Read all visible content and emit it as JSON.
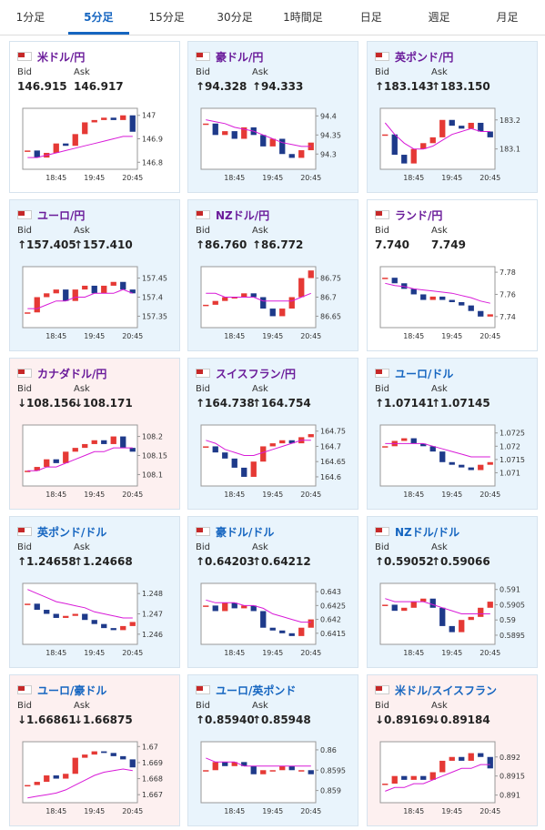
{
  "tabs": {
    "items": [
      "1分足",
      "5分足",
      "15分足",
      "30分足",
      "1時間足",
      "日足",
      "週足",
      "月足"
    ],
    "active_index": 1
  },
  "bid_label": "Bid",
  "ask_label": "Ask",
  "cards": [
    {
      "title": "米ドル/円",
      "bid": "146.915",
      "ask": "146.917",
      "background": "#ffffff",
      "link_color": "#6a1b9a",
      "chart": {
        "type": "candlestick",
        "categories": [
          null,
          null,
          null,
          "18:45",
          null,
          null,
          null,
          "19:45",
          null,
          null,
          null,
          "20:45"
        ],
        "close": [
          146.85,
          146.82,
          146.84,
          146.88,
          146.87,
          146.92,
          146.97,
          146.98,
          146.99,
          146.98,
          147.0,
          146.93
        ],
        "ma": [
          146.82,
          146.82,
          146.83,
          146.84,
          146.85,
          146.86,
          146.87,
          146.88,
          146.89,
          146.9,
          146.91,
          146.91
        ],
        "ylim": [
          146.77,
          147.03
        ],
        "yticks": [
          147,
          146.9,
          146.8
        ]
      }
    },
    {
      "title": "豪ドル/円",
      "bid": "↑94.328",
      "ask": "↑94.333",
      "background": "#e9f4fc",
      "link_color": "#6a1b9a",
      "chart": {
        "type": "candlestick",
        "categories": [
          null,
          null,
          null,
          "18:45",
          null,
          null,
          null,
          "19:45",
          null,
          null,
          null,
          "20:45"
        ],
        "close": [
          94.38,
          94.35,
          94.36,
          94.34,
          94.37,
          94.35,
          94.32,
          94.34,
          94.3,
          94.29,
          94.31,
          94.33
        ],
        "ma": [
          94.39,
          94.385,
          94.38,
          94.37,
          94.365,
          94.36,
          94.35,
          94.34,
          94.33,
          94.325,
          94.32,
          94.32
        ],
        "ylim": [
          94.26,
          94.42
        ],
        "yticks": [
          94.4,
          94.35,
          94.3
        ]
      }
    },
    {
      "title": "英ポンド/円",
      "bid": "↑183.143",
      "ask": "↑183.150",
      "background": "#e9f4fc",
      "link_color": "#6a1b9a",
      "chart": {
        "type": "candlestick",
        "categories": [
          null,
          null,
          null,
          "18:45",
          null,
          null,
          null,
          "19:45",
          null,
          null,
          null,
          "20:45"
        ],
        "close": [
          183.15,
          183.08,
          183.05,
          183.1,
          183.12,
          183.14,
          183.2,
          183.18,
          183.17,
          183.19,
          183.16,
          183.14
        ],
        "ma": [
          183.19,
          183.15,
          183.12,
          183.1,
          183.1,
          183.11,
          183.13,
          183.15,
          183.16,
          183.17,
          183.16,
          183.16
        ],
        "ylim": [
          183.03,
          183.24
        ],
        "yticks": [
          183.2,
          183.1
        ]
      }
    },
    {
      "title": "ユーロ/円",
      "bid": "↑157.405",
      "ask": "↑157.410",
      "background": "#e9f4fc",
      "link_color": "#6a1b9a",
      "chart": {
        "type": "candlestick",
        "categories": [
          null,
          null,
          null,
          "18:45",
          null,
          null,
          null,
          "19:45",
          null,
          null,
          null,
          "20:45"
        ],
        "close": [
          157.36,
          157.4,
          157.41,
          157.42,
          157.39,
          157.42,
          157.43,
          157.41,
          157.43,
          157.44,
          157.42,
          157.41
        ],
        "ma": [
          157.37,
          157.37,
          157.38,
          157.39,
          157.39,
          157.4,
          157.4,
          157.41,
          157.41,
          157.41,
          157.42,
          157.41
        ],
        "ylim": [
          157.32,
          157.48
        ],
        "yticks": [
          157.45,
          157.4,
          157.35
        ]
      }
    },
    {
      "title": "NZドル/円",
      "bid": "↑86.760",
      "ask": "↑86.772",
      "background": "#e9f4fc",
      "link_color": "#6a1b9a",
      "chart": {
        "type": "candlestick",
        "categories": [
          null,
          null,
          null,
          "18:45",
          null,
          null,
          null,
          "19:45",
          null,
          null,
          null,
          "20:45"
        ],
        "close": [
          86.68,
          86.69,
          86.7,
          86.7,
          86.71,
          86.7,
          86.67,
          86.65,
          86.67,
          86.7,
          86.75,
          86.77
        ],
        "ma": [
          86.71,
          86.71,
          86.7,
          86.7,
          86.7,
          86.7,
          86.69,
          86.69,
          86.69,
          86.69,
          86.7,
          86.71
        ],
        "ylim": [
          86.62,
          86.78
        ],
        "yticks": [
          86.75,
          86.7,
          86.65
        ]
      }
    },
    {
      "title": "ランド/円",
      "bid": "7.740",
      "ask": "7.749",
      "background": "#ffffff",
      "link_color": "#6a1b9a",
      "chart": {
        "type": "candlestick",
        "categories": [
          null,
          null,
          null,
          "18:45",
          null,
          null,
          null,
          "19:45",
          null,
          null,
          null,
          "20:45"
        ],
        "close": [
          7.775,
          7.77,
          7.765,
          7.76,
          7.755,
          7.758,
          7.755,
          7.753,
          7.75,
          7.745,
          7.74,
          7.742
        ],
        "ma": [
          7.77,
          7.768,
          7.767,
          7.765,
          7.764,
          7.763,
          7.762,
          7.761,
          7.759,
          7.757,
          7.754,
          7.752
        ],
        "ylim": [
          7.73,
          7.785
        ],
        "yticks": [
          7.78,
          7.76,
          7.74
        ]
      }
    },
    {
      "title": "カナダドル/円",
      "bid": "↓108.156",
      "ask": "↓108.171",
      "background": "#fdf0f0",
      "link_color": "#6a1b9a",
      "chart": {
        "type": "candlestick",
        "categories": [
          null,
          null,
          null,
          "18:45",
          null,
          null,
          null,
          "19:45",
          null,
          null,
          null,
          "20:45"
        ],
        "close": [
          108.11,
          108.12,
          108.14,
          108.13,
          108.16,
          108.17,
          108.18,
          108.19,
          108.18,
          108.2,
          108.17,
          108.16
        ],
        "ma": [
          108.11,
          108.11,
          108.12,
          108.12,
          108.13,
          108.14,
          108.15,
          108.16,
          108.16,
          108.17,
          108.17,
          108.17
        ],
        "ylim": [
          108.07,
          108.23
        ],
        "yticks": [
          108.2,
          108.15,
          108.1
        ]
      }
    },
    {
      "title": "スイスフラン/円",
      "bid": "↑164.738",
      "ask": "↑164.754",
      "background": "#e9f4fc",
      "link_color": "#6a1b9a",
      "chart": {
        "type": "candlestick",
        "categories": [
          null,
          null,
          null,
          "18:45",
          null,
          null,
          null,
          "19:45",
          null,
          null,
          null,
          "20:45"
        ],
        "close": [
          164.7,
          164.68,
          164.66,
          164.63,
          164.6,
          164.65,
          164.7,
          164.71,
          164.72,
          164.71,
          164.73,
          164.74
        ],
        "ma": [
          164.72,
          164.71,
          164.69,
          164.68,
          164.67,
          164.67,
          164.68,
          164.69,
          164.7,
          164.71,
          164.72,
          164.72
        ],
        "ylim": [
          164.57,
          164.77
        ],
        "yticks": [
          164.75,
          164.7,
          164.65,
          164.6
        ]
      }
    },
    {
      "title": "ユーロ/ドル",
      "bid": "↑1.07141",
      "ask": "↑1.07145",
      "background": "#e9f4fc",
      "link_color": "#1565c0",
      "chart": {
        "type": "candlestick",
        "categories": [
          null,
          null,
          null,
          "18:45",
          null,
          null,
          null,
          "19:45",
          null,
          null,
          null,
          "20:45"
        ],
        "close": [
          1.072,
          1.0722,
          1.0723,
          1.0721,
          1.072,
          1.0718,
          1.0714,
          1.0713,
          1.0712,
          1.0711,
          1.0713,
          1.0714
        ],
        "ma": [
          1.0721,
          1.0721,
          1.0721,
          1.0721,
          1.0721,
          1.072,
          1.0719,
          1.0718,
          1.0717,
          1.0716,
          1.0716,
          1.0716
        ],
        "ylim": [
          1.0705,
          1.0728
        ],
        "yticks": [
          1.0725,
          1.072,
          1.0715,
          1.071
        ]
      }
    },
    {
      "title": "英ポンド/ドル",
      "bid": "↑1.24658",
      "ask": "↑1.24668",
      "background": "#e9f4fc",
      "link_color": "#1565c0",
      "chart": {
        "type": "candlestick",
        "categories": [
          null,
          null,
          null,
          "18:45",
          null,
          null,
          null,
          "19:45",
          null,
          null,
          null,
          "20:45"
        ],
        "close": [
          1.2475,
          1.2472,
          1.247,
          1.2468,
          1.2469,
          1.247,
          1.2467,
          1.2465,
          1.2463,
          1.2462,
          1.2464,
          1.2466
        ],
        "ma": [
          1.2482,
          1.248,
          1.2478,
          1.2476,
          1.2475,
          1.2474,
          1.2473,
          1.2471,
          1.247,
          1.2469,
          1.2468,
          1.2468
        ],
        "ylim": [
          1.2455,
          1.2485
        ],
        "yticks": [
          1.248,
          1.247,
          1.246
        ]
      }
    },
    {
      "title": "豪ドル/ドル",
      "bid": "↑0.64203",
      "ask": "↑0.64212",
      "background": "#e9f4fc",
      "link_color": "#1565c0",
      "chart": {
        "type": "candlestick",
        "categories": [
          null,
          null,
          null,
          "18:45",
          null,
          null,
          null,
          "19:45",
          null,
          null,
          null,
          "20:45"
        ],
        "close": [
          0.6425,
          0.6423,
          0.6426,
          0.6424,
          0.6425,
          0.6423,
          0.6417,
          0.6416,
          0.6415,
          0.6414,
          0.6417,
          0.642
        ],
        "ma": [
          0.6427,
          0.6426,
          0.6426,
          0.6426,
          0.6425,
          0.6425,
          0.6424,
          0.6422,
          0.6421,
          0.642,
          0.6419,
          0.6419
        ],
        "ylim": [
          0.6411,
          0.6433
        ],
        "yticks": [
          0.643,
          0.6425,
          0.642,
          0.6415
        ]
      }
    },
    {
      "title": "NZドル/ドル",
      "bid": "↑0.59052",
      "ask": "↑0.59066",
      "background": "#e9f4fc",
      "link_color": "#1565c0",
      "chart": {
        "type": "candlestick",
        "categories": [
          null,
          null,
          null,
          "18:45",
          null,
          null,
          null,
          "19:45",
          null,
          null,
          null,
          "20:45"
        ],
        "close": [
          0.5905,
          0.5903,
          0.5904,
          0.5906,
          0.5907,
          0.5904,
          0.5898,
          0.5896,
          0.59,
          0.5901,
          0.5904,
          0.5906
        ],
        "ma": [
          0.5907,
          0.5906,
          0.5906,
          0.5906,
          0.5906,
          0.5905,
          0.5904,
          0.5903,
          0.5902,
          0.5902,
          0.5902,
          0.5902
        ],
        "ylim": [
          0.5892,
          0.5912
        ],
        "yticks": [
          0.591,
          0.5905,
          0.59,
          0.5895
        ]
      }
    },
    {
      "title": "ユーロ/豪ドル",
      "bid": "↓1.66861",
      "ask": "↓1.66875",
      "background": "#fdf0f0",
      "link_color": "#1565c0",
      "chart": {
        "type": "candlestick",
        "categories": [
          null,
          null,
          null,
          "18:45",
          null,
          null,
          null,
          "19:45",
          null,
          null,
          null,
          "20:45"
        ],
        "close": [
          1.6676,
          1.6678,
          1.6682,
          1.668,
          1.6683,
          1.6693,
          1.6695,
          1.6697,
          1.6696,
          1.6694,
          1.6692,
          1.6687
        ],
        "ma": [
          1.6668,
          1.6669,
          1.667,
          1.6671,
          1.6673,
          1.6676,
          1.6679,
          1.6682,
          1.6684,
          1.6685,
          1.6686,
          1.6685
        ],
        "ylim": [
          1.6665,
          1.6703
        ],
        "yticks": [
          1.67,
          1.669,
          1.668,
          1.667
        ]
      }
    },
    {
      "title": "ユーロ/英ポンド",
      "bid": "↑0.85940",
      "ask": "↑0.85948",
      "background": "#e9f4fc",
      "link_color": "#1565c0",
      "chart": {
        "type": "candlestick",
        "categories": [
          null,
          null,
          null,
          "18:45",
          null,
          null,
          null,
          "19:45",
          null,
          null,
          null,
          "20:45"
        ],
        "close": [
          0.8595,
          0.8597,
          0.8596,
          0.8597,
          0.8596,
          0.8594,
          0.8595,
          0.8595,
          0.8596,
          0.8595,
          0.8595,
          0.8594
        ],
        "ma": [
          0.8598,
          0.8597,
          0.8597,
          0.8597,
          0.8596,
          0.8596,
          0.8596,
          0.8596,
          0.8596,
          0.8596,
          0.8596,
          0.8596
        ],
        "ylim": [
          0.8587,
          0.8602
        ],
        "yticks": [
          0.86,
          0.8595,
          0.859
        ]
      }
    },
    {
      "title": "米ドル/スイスフラン",
      "bid": "↓0.89169",
      "ask": "↓0.89184",
      "background": "#fdf0f0",
      "link_color": "#1565c0",
      "chart": {
        "type": "candlestick",
        "categories": [
          null,
          null,
          null,
          "18:45",
          null,
          null,
          null,
          "19:45",
          null,
          null,
          null,
          "20:45"
        ],
        "close": [
          0.8913,
          0.8915,
          0.8914,
          0.8915,
          0.8914,
          0.8916,
          0.8919,
          0.892,
          0.8919,
          0.8921,
          0.892,
          0.8917
        ],
        "ma": [
          0.8911,
          0.8912,
          0.8912,
          0.8913,
          0.8913,
          0.8914,
          0.8915,
          0.8916,
          0.8917,
          0.8917,
          0.8918,
          0.8918
        ],
        "ylim": [
          0.8908,
          0.8924
        ],
        "yticks": [
          0.892,
          0.8915,
          0.891
        ]
      }
    }
  ]
}
